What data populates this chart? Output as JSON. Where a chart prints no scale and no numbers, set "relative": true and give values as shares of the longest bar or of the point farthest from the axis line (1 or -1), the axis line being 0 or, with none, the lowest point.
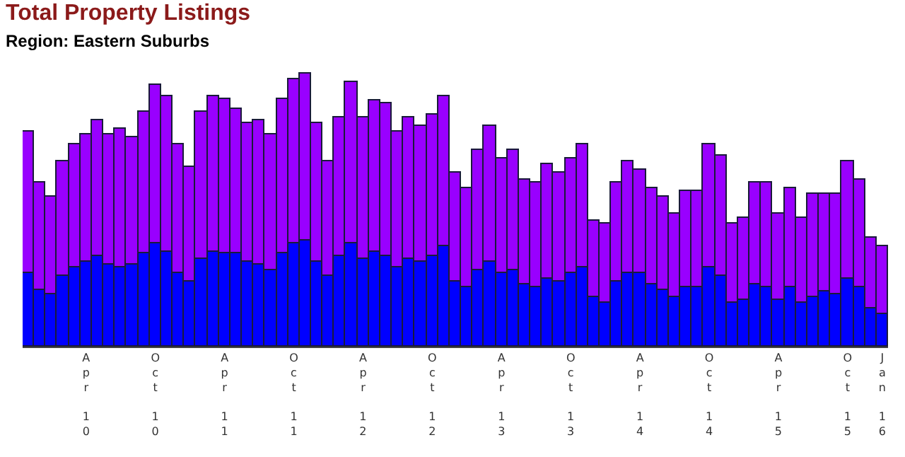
{
  "chart_data": {
    "type": "bar",
    "title": "Total Property Listings",
    "subtitle": "Region: Eastern Suburbs",
    "stacked": true,
    "relative": true,
    "categories": [
      null,
      null,
      null,
      null,
      null,
      "Apr 10",
      null,
      null,
      null,
      null,
      null,
      "Oct 10",
      null,
      null,
      null,
      null,
      null,
      "Apr 11",
      null,
      null,
      null,
      null,
      null,
      "Oct 11",
      null,
      null,
      null,
      null,
      null,
      "Apr 12",
      null,
      null,
      null,
      null,
      null,
      "Oct 12",
      null,
      null,
      null,
      null,
      null,
      "Apr 13",
      null,
      null,
      null,
      null,
      null,
      "Oct 13",
      null,
      null,
      null,
      null,
      null,
      "Apr 14",
      null,
      null,
      null,
      null,
      null,
      "Oct 14",
      null,
      null,
      null,
      null,
      null,
      "Apr 15",
      null,
      null,
      null,
      null,
      null,
      "Oct 15",
      null,
      null,
      "Jan 16"
    ],
    "series": [
      {
        "color": "#0000ff",
        "values": [
          0.27,
          0.21,
          0.19,
          0.26,
          0.29,
          0.31,
          0.33,
          0.3,
          0.29,
          0.3,
          0.34,
          0.38,
          0.35,
          0.27,
          0.24,
          0.32,
          0.35,
          0.34,
          0.34,
          0.31,
          0.3,
          0.28,
          0.34,
          0.38,
          0.39,
          0.31,
          0.26,
          0.33,
          0.38,
          0.32,
          0.35,
          0.33,
          0.29,
          0.32,
          0.31,
          0.33,
          0.37,
          0.24,
          0.22,
          0.28,
          0.31,
          0.27,
          0.28,
          0.23,
          0.22,
          0.25,
          0.24,
          0.27,
          0.29,
          0.18,
          0.16,
          0.24,
          0.27,
          0.27,
          0.23,
          0.21,
          0.18,
          0.22,
          0.22,
          0.29,
          0.26,
          0.16,
          0.17,
          0.23,
          0.22,
          0.17,
          0.22,
          0.16,
          0.18,
          0.2,
          0.19,
          0.25,
          0.22,
          0.14,
          0.12
        ]
      },
      {
        "color": "#9900ff",
        "values": [
          0.52,
          0.39,
          0.36,
          0.42,
          0.45,
          0.47,
          0.5,
          0.48,
          0.51,
          0.47,
          0.52,
          0.58,
          0.57,
          0.47,
          0.42,
          0.54,
          0.57,
          0.57,
          0.53,
          0.51,
          0.53,
          0.5,
          0.57,
          0.6,
          0.61,
          0.51,
          0.42,
          0.51,
          0.59,
          0.52,
          0.55,
          0.56,
          0.5,
          0.52,
          0.5,
          0.52,
          0.55,
          0.4,
          0.36,
          0.44,
          0.5,
          0.42,
          0.44,
          0.38,
          0.38,
          0.42,
          0.4,
          0.42,
          0.45,
          0.28,
          0.29,
          0.36,
          0.41,
          0.38,
          0.35,
          0.34,
          0.31,
          0.35,
          0.35,
          0.45,
          0.44,
          0.29,
          0.3,
          0.37,
          0.38,
          0.32,
          0.36,
          0.31,
          0.38,
          0.36,
          0.37,
          0.43,
          0.39,
          0.26,
          0.25
        ]
      }
    ]
  }
}
